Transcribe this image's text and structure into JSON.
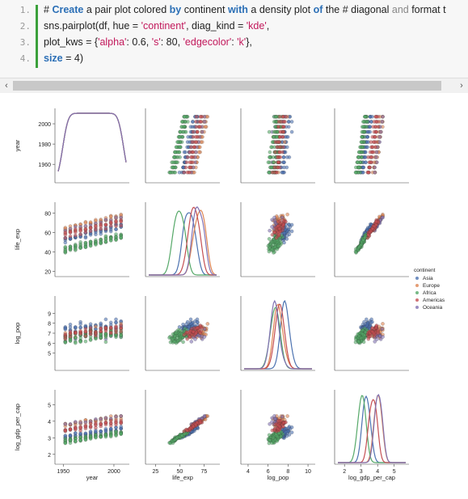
{
  "code": {
    "line_numbers": [
      "1.",
      "2.",
      "3.",
      "4."
    ],
    "lines": [
      [
        {
          "t": "# ",
          "c": ""
        },
        {
          "t": "Create",
          "c": "kw"
        },
        {
          "t": " a pair plot colored ",
          "c": ""
        },
        {
          "t": "by",
          "c": "kw"
        },
        {
          "t": " continent ",
          "c": ""
        },
        {
          "t": "with",
          "c": "kw"
        },
        {
          "t": " a density plot ",
          "c": ""
        },
        {
          "t": "of",
          "c": "kw"
        },
        {
          "t": " the # diagonal ",
          "c": ""
        },
        {
          "t": "and",
          "c": "kwg"
        },
        {
          "t": " format t",
          "c": ""
        }
      ],
      [
        {
          "t": "sns.pairplot(df, hue = ",
          "c": ""
        },
        {
          "t": "'continent'",
          "c": "str"
        },
        {
          "t": ", diag_kind = ",
          "c": ""
        },
        {
          "t": "'kde'",
          "c": "str"
        },
        {
          "t": ",",
          "c": ""
        }
      ],
      [
        {
          "t": "plot_kws = {",
          "c": ""
        },
        {
          "t": "'alpha'",
          "c": "str"
        },
        {
          "t": ": 0.6, ",
          "c": ""
        },
        {
          "t": "'s'",
          "c": "str"
        },
        {
          "t": ": 80, ",
          "c": ""
        },
        {
          "t": "'edgecolor'",
          "c": "str"
        },
        {
          "t": ": ",
          "c": ""
        },
        {
          "t": "'k'",
          "c": "str"
        },
        {
          "t": "},",
          "c": ""
        }
      ],
      [
        {
          "t": "size",
          "c": "kw"
        },
        {
          "t": " = 4)",
          "c": ""
        }
      ]
    ]
  },
  "scrollbar": {
    "left_arrow": "‹",
    "right_arrow": "›"
  },
  "chart_data": {
    "type": "scatter",
    "variables": [
      "year",
      "life_exp",
      "log_pop",
      "log_gdp_per_cap"
    ],
    "ticks": {
      "year": [
        "1960",
        "1980",
        "2000"
      ],
      "year_x": [
        "1950",
        "2000"
      ],
      "life_exp": [
        "20",
        "40",
        "60",
        "80"
      ],
      "life_exp_x": [
        "25",
        "50",
        "75"
      ],
      "log_pop": [
        "5",
        "6",
        "7",
        "8",
        "9"
      ],
      "log_pop_x": [
        "4",
        "6",
        "8",
        "10"
      ],
      "log_gdp_per_cap": [
        "2",
        "3",
        "4",
        "5"
      ],
      "log_gdp_per_cap_x": [
        "2",
        "3",
        "4",
        "5"
      ]
    },
    "legend": {
      "title": "continent",
      "entries": [
        {
          "name": "Asia",
          "color": "#4c72b0"
        },
        {
          "name": "Europe",
          "color": "#dd8452"
        },
        {
          "name": "Africa",
          "color": "#55a868"
        },
        {
          "name": "Americas",
          "color": "#c44e52"
        },
        {
          "name": "Oceania",
          "color": "#8172b3"
        }
      ],
      "placement": "right"
    },
    "diag_kind": "kde",
    "alpha": 0.6
  }
}
